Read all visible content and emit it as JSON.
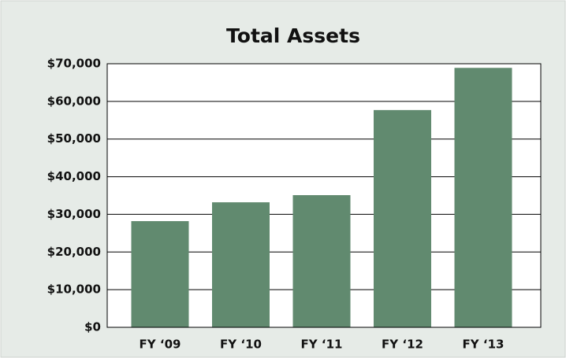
{
  "chart_data": {
    "type": "bar",
    "title": "Total Assets",
    "categories": [
      "FY ‘09",
      "FY ‘10",
      "FY ‘11",
      "FY ‘12",
      "FY ‘13"
    ],
    "values": [
      28200,
      33200,
      35100,
      57700,
      68900
    ],
    "color": "#618a6f",
    "ylim": [
      0,
      70000
    ],
    "yticks": [
      {
        "value": 0,
        "label": "$0"
      },
      {
        "value": 10000,
        "label": "$10,000"
      },
      {
        "value": 20000,
        "label": "$20,000"
      },
      {
        "value": 30000,
        "label": "$30,000"
      },
      {
        "value": 40000,
        "label": "$40,000"
      },
      {
        "value": 50000,
        "label": "$50,000"
      },
      {
        "value": 60000,
        "label": "$60,000"
      },
      {
        "value": 70000,
        "label": "$70,000"
      }
    ],
    "grid": true
  }
}
